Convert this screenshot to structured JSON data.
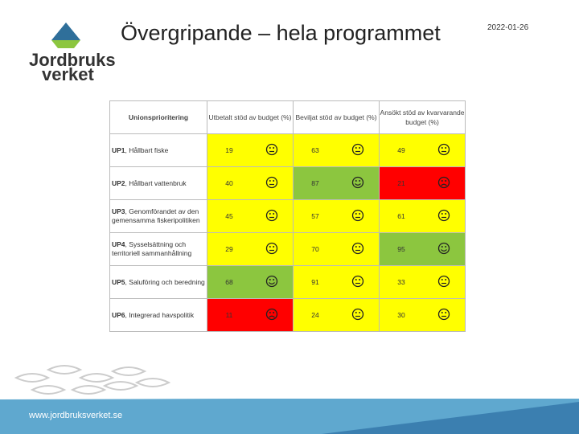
{
  "header": {
    "title": "Övergripande – hela programmet",
    "date": "2022-01-26"
  },
  "logo": {
    "line1": "Jordbruks",
    "line2": "verket"
  },
  "footer": {
    "url": "www.jordbruksverket.se"
  },
  "status_colors": {
    "good": "#8cc63f",
    "ok": "#ffff00",
    "bad": "#ff0000"
  },
  "table": {
    "columns": [
      "Unionsprioritering",
      "Utbetalt stöd av budget (%)",
      "Beviljat stöd av budget (%)",
      "Ansökt stöd av kvarvarande budget (%)"
    ],
    "rows": [
      {
        "code": "UP1",
        "name": ", Hållbart fiske",
        "cells": [
          {
            "value": 19,
            "status": "ok"
          },
          {
            "value": 63,
            "status": "ok"
          },
          {
            "value": 49,
            "status": "ok"
          }
        ]
      },
      {
        "code": "UP2",
        "name": ", Hållbart vattenbruk",
        "cells": [
          {
            "value": 40,
            "status": "ok"
          },
          {
            "value": 87,
            "status": "good"
          },
          {
            "value": 21,
            "status": "bad"
          }
        ]
      },
      {
        "code": "UP3",
        "name": ", Genomförandet av den gemensamma fiskeripolitiken",
        "cells": [
          {
            "value": 45,
            "status": "ok"
          },
          {
            "value": 57,
            "status": "ok"
          },
          {
            "value": 61,
            "status": "ok"
          }
        ]
      },
      {
        "code": "UP4",
        "name": ", Sysselsättning och territoriell sammanhållning",
        "cells": [
          {
            "value": 29,
            "status": "ok"
          },
          {
            "value": 70,
            "status": "ok"
          },
          {
            "value": 95,
            "status": "good"
          }
        ]
      },
      {
        "code": "UP5",
        "name": ", Saluföring och beredning",
        "cells": [
          {
            "value": 68,
            "status": "good"
          },
          {
            "value": 91,
            "status": "ok"
          },
          {
            "value": 33,
            "status": "ok"
          }
        ]
      },
      {
        "code": "UP6",
        "name": ", Integrerad havspolitik",
        "cells": [
          {
            "value": 11,
            "status": "bad"
          },
          {
            "value": 24,
            "status": "ok"
          },
          {
            "value": 30,
            "status": "ok"
          }
        ]
      }
    ]
  }
}
